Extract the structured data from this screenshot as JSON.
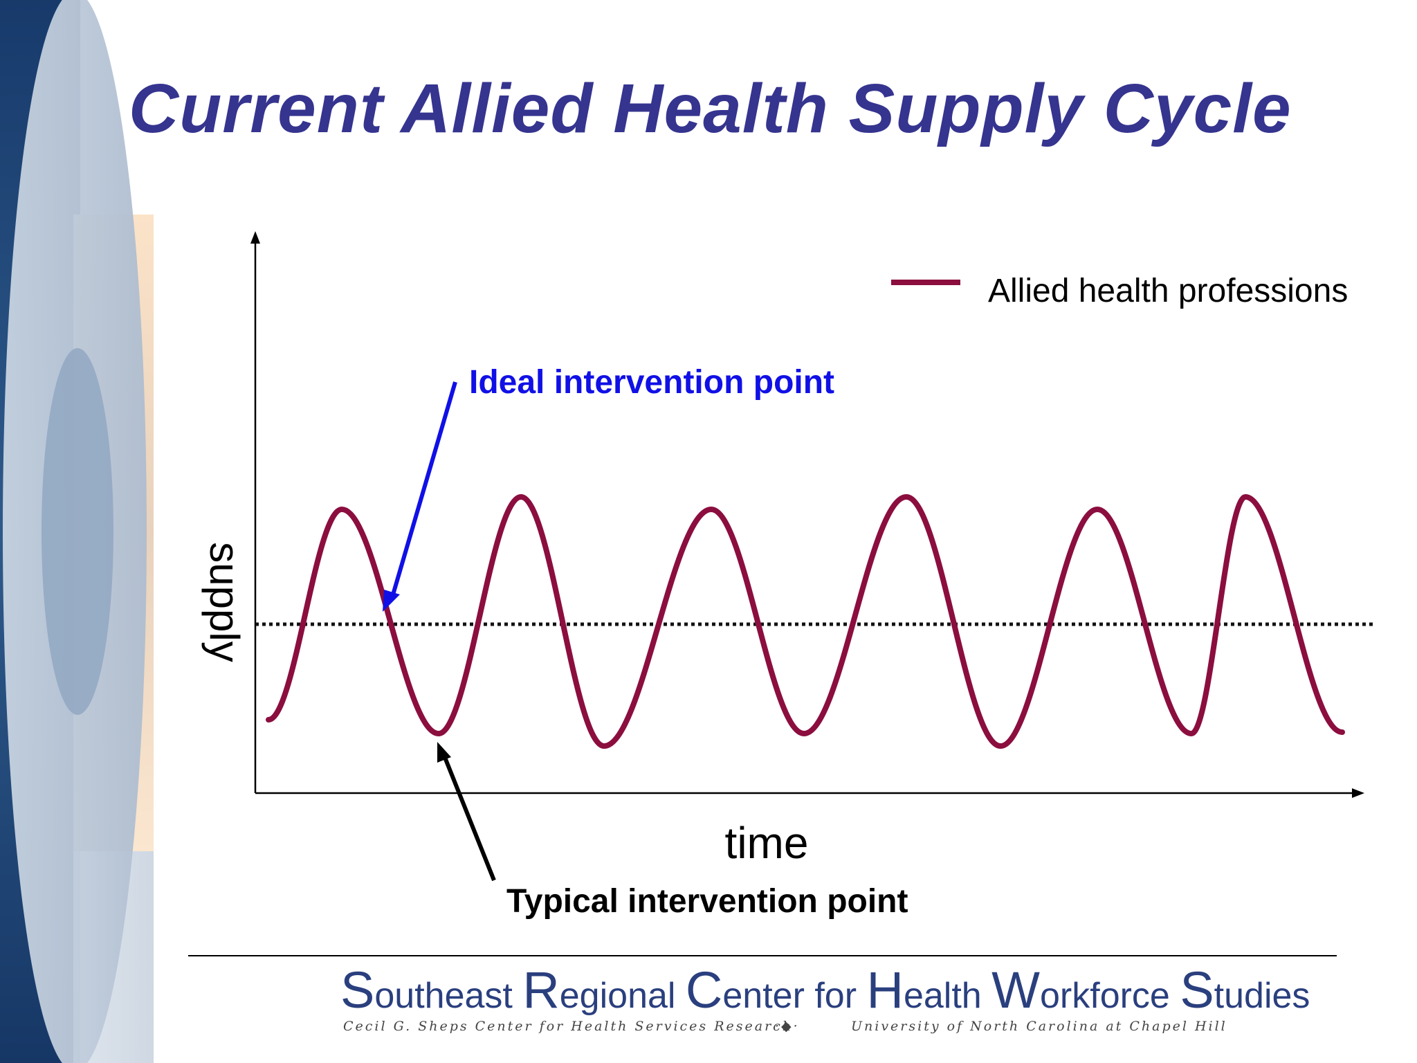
{
  "slide": {
    "title": "Current Allied Health Supply Cycle"
  },
  "chart_data": {
    "type": "line",
    "title": "",
    "xlabel": "time",
    "ylabel": "supply",
    "x_ticks": "none",
    "y_ticks": "none",
    "grid": false,
    "legend": {
      "position": "top-right",
      "entries": [
        "Allied health professions"
      ]
    },
    "series": [
      {
        "name": "Allied health professions",
        "color": "#8b0e3f",
        "shape": "sinusoidal cycle",
        "peaks": 6,
        "troughs": 6
      }
    ],
    "reference_line": {
      "style": "dotted",
      "color": "#111111",
      "meaning": "equilibrium level"
    },
    "annotations": [
      {
        "text": "Ideal intervention point",
        "color": "#1010e6",
        "points_to": "first downward crossing of the dotted level"
      },
      {
        "text": "Typical intervention point",
        "color": "#000000",
        "points_to": "first trough"
      }
    ]
  },
  "footer": {
    "org_parts": [
      {
        "initial": "S",
        "rest": "outheast "
      },
      {
        "initial": "R",
        "rest": "egional "
      },
      {
        "initial": "C",
        "rest": "enter for "
      },
      {
        "initial": "H",
        "rest": "ealth "
      },
      {
        "initial": "W",
        "rest": "orkforce "
      },
      {
        "initial": "S",
        "rest": "tudies"
      }
    ],
    "sub_left": "Cecil G. Sheps Center for Health Services Research",
    "sub_separator": "·◆·",
    "sub_right": "University of North Carolina at Chapel Hill"
  },
  "theme": {
    "title_color": "#35348f",
    "series_color": "#8b0e3f",
    "ideal_color": "#1010e6",
    "footer_color": "#2a3f7e"
  }
}
